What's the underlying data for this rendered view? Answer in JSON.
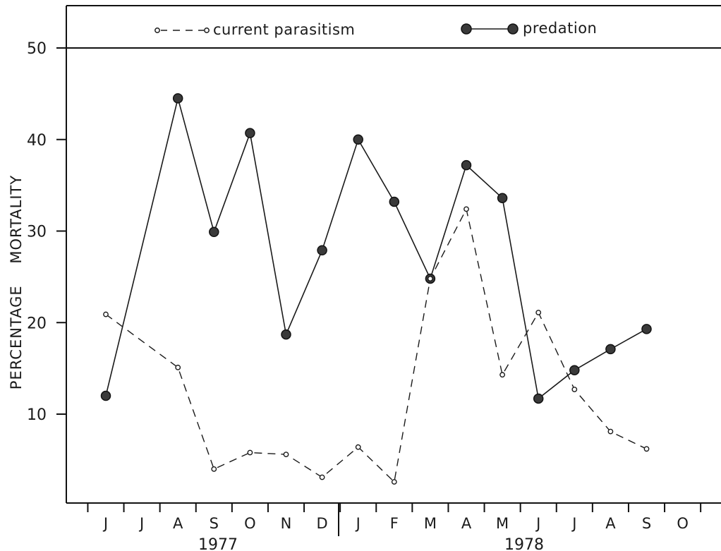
{
  "chart_data": {
    "type": "line",
    "ylabel": "PERCENTAGE    MORTALITY",
    "xlabel": "",
    "ylim": [
      0,
      50
    ],
    "yticks": [
      10,
      20,
      30,
      40,
      50
    ],
    "x_categories": [
      "J",
      "J",
      "A",
      "S",
      "O",
      "N",
      "D",
      "J",
      "F",
      "M",
      "A",
      "M",
      "J",
      "J",
      "A",
      "S",
      "O"
    ],
    "years": [
      {
        "label": "1977"
      },
      {
        "label": "1978"
      }
    ],
    "grid": false,
    "legend_placement": "top",
    "series": [
      {
        "name": "current parasitism",
        "style": "dashed, open circles",
        "color": "#1a1a1a",
        "points": [
          {
            "x": 0,
            "y": 20.9
          },
          {
            "x": 2,
            "y": 15.1
          },
          {
            "x": 3,
            "y": 4.0
          },
          {
            "x": 4,
            "y": 5.8
          },
          {
            "x": 5,
            "y": 5.6
          },
          {
            "x": 6,
            "y": 3.1
          },
          {
            "x": 7,
            "y": 6.4
          },
          {
            "x": 8,
            "y": 2.6
          },
          {
            "x": 9,
            "y": 24.8
          },
          {
            "x": 10,
            "y": 32.4
          },
          {
            "x": 11,
            "y": 14.3
          },
          {
            "x": 12,
            "y": 21.1
          },
          {
            "x": 13,
            "y": 12.7
          },
          {
            "x": 14,
            "y": 8.1
          },
          {
            "x": 15,
            "y": 6.2
          }
        ]
      },
      {
        "name": "predation",
        "style": "solid, filled circles",
        "color": "#1a1a1a",
        "points": [
          {
            "x": 0,
            "y": 12.0
          },
          {
            "x": 2,
            "y": 44.5
          },
          {
            "x": 3,
            "y": 29.9
          },
          {
            "x": 4,
            "y": 40.7
          },
          {
            "x": 5,
            "y": 18.7
          },
          {
            "x": 6,
            "y": 27.9
          },
          {
            "x": 7,
            "y": 40.0
          },
          {
            "x": 8,
            "y": 33.2
          },
          {
            "x": 9,
            "y": 24.8
          },
          {
            "x": 10,
            "y": 37.2
          },
          {
            "x": 11,
            "y": 33.6
          },
          {
            "x": 12,
            "y": 11.7
          },
          {
            "x": 13,
            "y": 14.8
          },
          {
            "x": 14,
            "y": 17.1
          },
          {
            "x": 15,
            "y": 19.3
          }
        ]
      }
    ]
  }
}
